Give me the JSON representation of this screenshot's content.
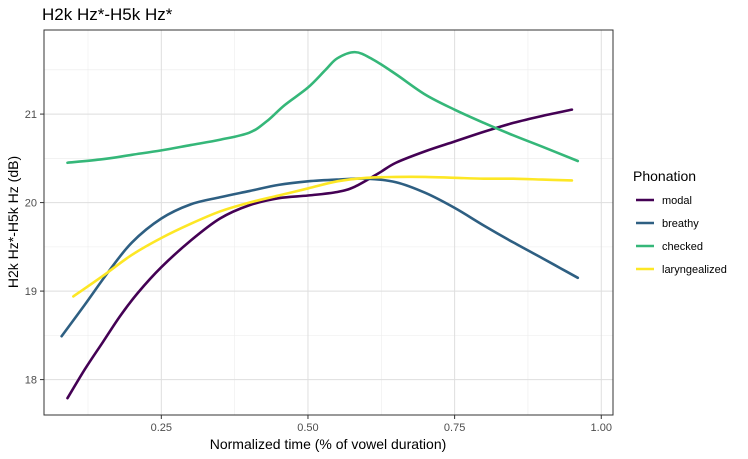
{
  "chart_data": {
    "type": "line",
    "title": "H2k Hz*-H5k Hz*",
    "xlabel": "Normalized time (% of vowel duration)",
    "ylabel": "H2k Hz*-H5k Hz (dB)",
    "xlim": [
      0.05,
      1.02
    ],
    "ylim": [
      17.6,
      21.95
    ],
    "x_ticks": [
      {
        "value": 0.25,
        "label": "0.25"
      },
      {
        "value": 0.5,
        "label": "0.50"
      },
      {
        "value": 0.75,
        "label": "0.75"
      },
      {
        "value": 1.0,
        "label": "1.00"
      }
    ],
    "y_ticks": [
      {
        "value": 18,
        "label": "18"
      },
      {
        "value": 19,
        "label": "19"
      },
      {
        "value": 20,
        "label": "20"
      },
      {
        "value": 21,
        "label": "21"
      }
    ],
    "grid": true,
    "legend": {
      "title": "Phonation",
      "placement": "right"
    },
    "series": [
      {
        "name": "modal",
        "color": "#440154",
        "points": [
          [
            0.09,
            17.79
          ],
          [
            0.12,
            18.12
          ],
          [
            0.15,
            18.42
          ],
          [
            0.18,
            18.72
          ],
          [
            0.21,
            18.98
          ],
          [
            0.25,
            19.27
          ],
          [
            0.3,
            19.57
          ],
          [
            0.35,
            19.82
          ],
          [
            0.4,
            19.97
          ],
          [
            0.45,
            20.05
          ],
          [
            0.5,
            20.08
          ],
          [
            0.55,
            20.12
          ],
          [
            0.58,
            20.18
          ],
          [
            0.62,
            20.33
          ],
          [
            0.65,
            20.45
          ],
          [
            0.7,
            20.58
          ],
          [
            0.75,
            20.69
          ],
          [
            0.8,
            20.8
          ],
          [
            0.85,
            20.9
          ],
          [
            0.9,
            20.98
          ],
          [
            0.95,
            21.05
          ]
        ]
      },
      {
        "name": "breathy",
        "color": "#2e5f82",
        "points": [
          [
            0.08,
            18.49
          ],
          [
            0.12,
            18.85
          ],
          [
            0.16,
            19.22
          ],
          [
            0.2,
            19.55
          ],
          [
            0.25,
            19.82
          ],
          [
            0.3,
            19.98
          ],
          [
            0.35,
            20.06
          ],
          [
            0.4,
            20.13
          ],
          [
            0.45,
            20.2
          ],
          [
            0.5,
            20.24
          ],
          [
            0.55,
            20.26
          ],
          [
            0.6,
            20.27
          ],
          [
            0.65,
            20.23
          ],
          [
            0.7,
            20.11
          ],
          [
            0.75,
            19.94
          ],
          [
            0.8,
            19.74
          ],
          [
            0.85,
            19.55
          ],
          [
            0.9,
            19.37
          ],
          [
            0.93,
            19.26
          ],
          [
            0.96,
            19.15
          ]
        ]
      },
      {
        "name": "checked",
        "color": "#35b779",
        "points": [
          [
            0.09,
            20.45
          ],
          [
            0.15,
            20.49
          ],
          [
            0.2,
            20.54
          ],
          [
            0.25,
            20.59
          ],
          [
            0.3,
            20.65
          ],
          [
            0.35,
            20.71
          ],
          [
            0.4,
            20.79
          ],
          [
            0.43,
            20.92
          ],
          [
            0.46,
            21.1
          ],
          [
            0.5,
            21.3
          ],
          [
            0.53,
            21.5
          ],
          [
            0.55,
            21.63
          ],
          [
            0.58,
            21.7
          ],
          [
            0.61,
            21.62
          ],
          [
            0.65,
            21.45
          ],
          [
            0.7,
            21.22
          ],
          [
            0.75,
            21.05
          ],
          [
            0.8,
            20.9
          ],
          [
            0.85,
            20.76
          ],
          [
            0.9,
            20.63
          ],
          [
            0.96,
            20.47
          ]
        ]
      },
      {
        "name": "laryngealized",
        "color": "#fde725",
        "points": [
          [
            0.1,
            18.94
          ],
          [
            0.15,
            19.17
          ],
          [
            0.2,
            19.41
          ],
          [
            0.25,
            19.6
          ],
          [
            0.3,
            19.76
          ],
          [
            0.35,
            19.9
          ],
          [
            0.4,
            20.0
          ],
          [
            0.45,
            20.08
          ],
          [
            0.5,
            20.16
          ],
          [
            0.55,
            20.24
          ],
          [
            0.6,
            20.28
          ],
          [
            0.65,
            20.29
          ],
          [
            0.7,
            20.29
          ],
          [
            0.75,
            20.28
          ],
          [
            0.8,
            20.27
          ],
          [
            0.85,
            20.27
          ],
          [
            0.9,
            20.26
          ],
          [
            0.95,
            20.25
          ]
        ]
      }
    ]
  }
}
